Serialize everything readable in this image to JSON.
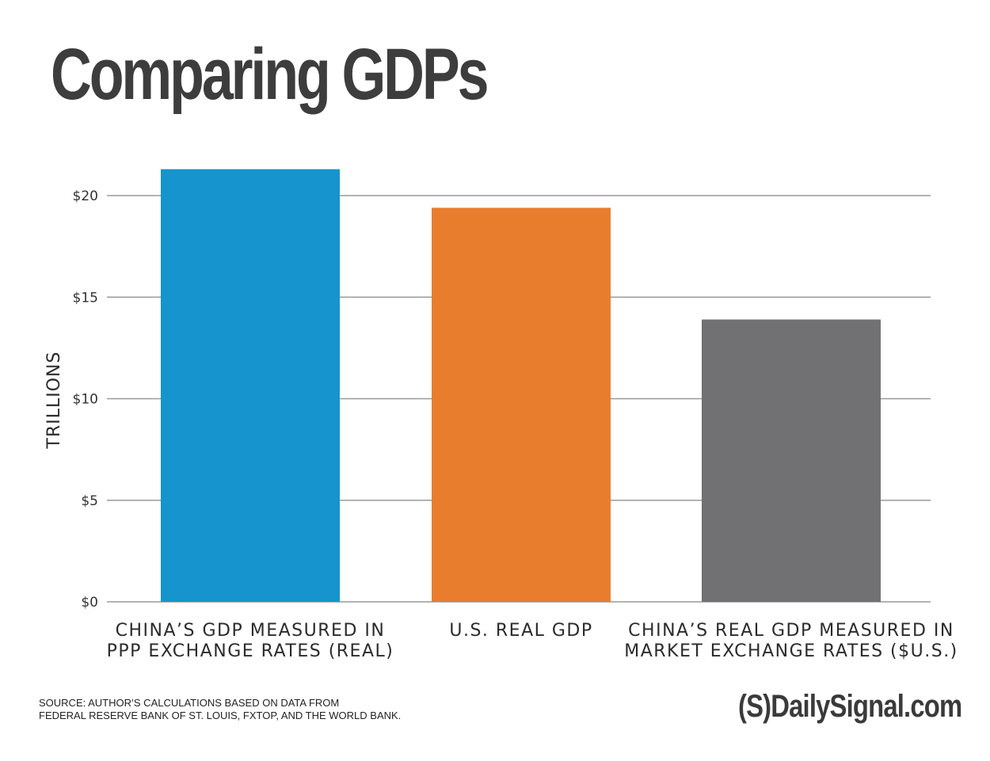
{
  "chart_data": {
    "type": "bar",
    "title": "Comparing GDPs",
    "xlabel": "",
    "ylabel": "TRILLIONS",
    "ylim": [
      0,
      20
    ],
    "yticks": [
      0,
      5,
      10,
      15,
      20
    ],
    "ytick_labels": [
      "$0",
      "$5",
      "$10",
      "$15",
      "$20"
    ],
    "grid": true,
    "categories": [
      [
        "CHINA’S GDP MEASURED IN",
        "PPP EXCHANGE RATES (REAL)"
      ],
      [
        "U.S. REAL GDP"
      ],
      [
        "CHINA’S REAL GDP MEASURED IN",
        "MARKET EXCHANGE RATES ($U.S.)"
      ]
    ],
    "values": [
      21.3,
      19.4,
      13.9
    ],
    "colors": [
      "#1594ce",
      "#e87d2e",
      "#717173"
    ]
  },
  "footer": {
    "source_lines": [
      "SOURCE: AUTHOR’S CALCULATIONS BASED ON DATA FROM",
      "FEDERAL RESERVE BANK OF ST. LOUIS, FXTOP, AND THE WORLD BANK."
    ],
    "brand": "(S)DailySignal.com"
  }
}
